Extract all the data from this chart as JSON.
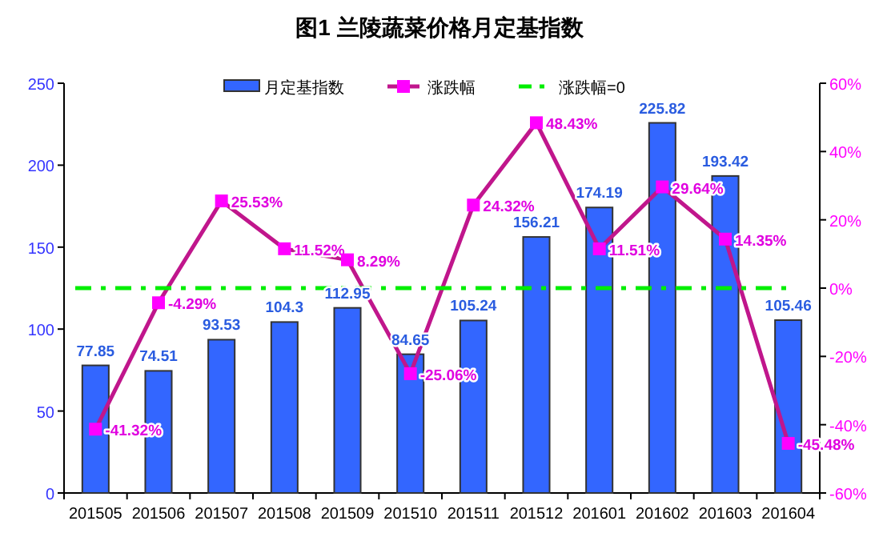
{
  "chart_data": {
    "type": "bar",
    "title": "图1  兰陵蔬菜价格月定基指数",
    "categories": [
      "201505",
      "201506",
      "201507",
      "201508",
      "201509",
      "201510",
      "201511",
      "201512",
      "201601",
      "201602",
      "201603",
      "201604"
    ],
    "series": [
      {
        "name": "月定基指数",
        "color": "#3366ff",
        "values": [
          77.85,
          74.51,
          93.53,
          104.3,
          112.95,
          84.65,
          105.24,
          156.21,
          174.19,
          225.82,
          193.42,
          105.46
        ],
        "value_labels": [
          "77.85",
          "74.51",
          "93.53",
          "104.3",
          "112.95",
          "84.65",
          "105.24",
          "156.21",
          "174.19",
          "225.82",
          "193.42",
          "105.46"
        ]
      },
      {
        "name": "涨跌幅",
        "type": "line",
        "axis": "y2",
        "color": "#c0168c",
        "marker": "square",
        "values": [
          -41.32,
          -4.29,
          25.53,
          11.52,
          8.29,
          -25.06,
          24.32,
          48.43,
          11.51,
          29.64,
          14.35,
          -45.48
        ],
        "value_labels": [
          "-41.32%",
          "-4.29%",
          "25.53%",
          "11.52%",
          "8.29%",
          "-25.06%",
          "24.32%",
          "48.43%",
          "11.51%",
          "29.64%",
          "14.35%",
          "-45.48%"
        ]
      }
    ],
    "ylim": [
      0,
      250
    ],
    "yticks": [
      0,
      50,
      100,
      150,
      200,
      250
    ],
    "y2lim": [
      -60,
      60
    ],
    "y2ticks": [
      {
        "value": -60,
        "label": "-60%"
      },
      {
        "value": -40,
        "label": "-40%"
      },
      {
        "value": -20,
        "label": "-20%"
      },
      {
        "value": 0,
        "label": "0%"
      },
      {
        "value": 20,
        "label": "20%"
      },
      {
        "value": 40,
        "label": "40%"
      },
      {
        "value": 60,
        "label": "60%"
      }
    ],
    "ref_lines": [
      {
        "axis": "y2",
        "value": 0,
        "label": "涨跌幅=0",
        "color": "#00ee00",
        "line_style": "dashed"
      }
    ],
    "legend": "top",
    "grid": false
  }
}
